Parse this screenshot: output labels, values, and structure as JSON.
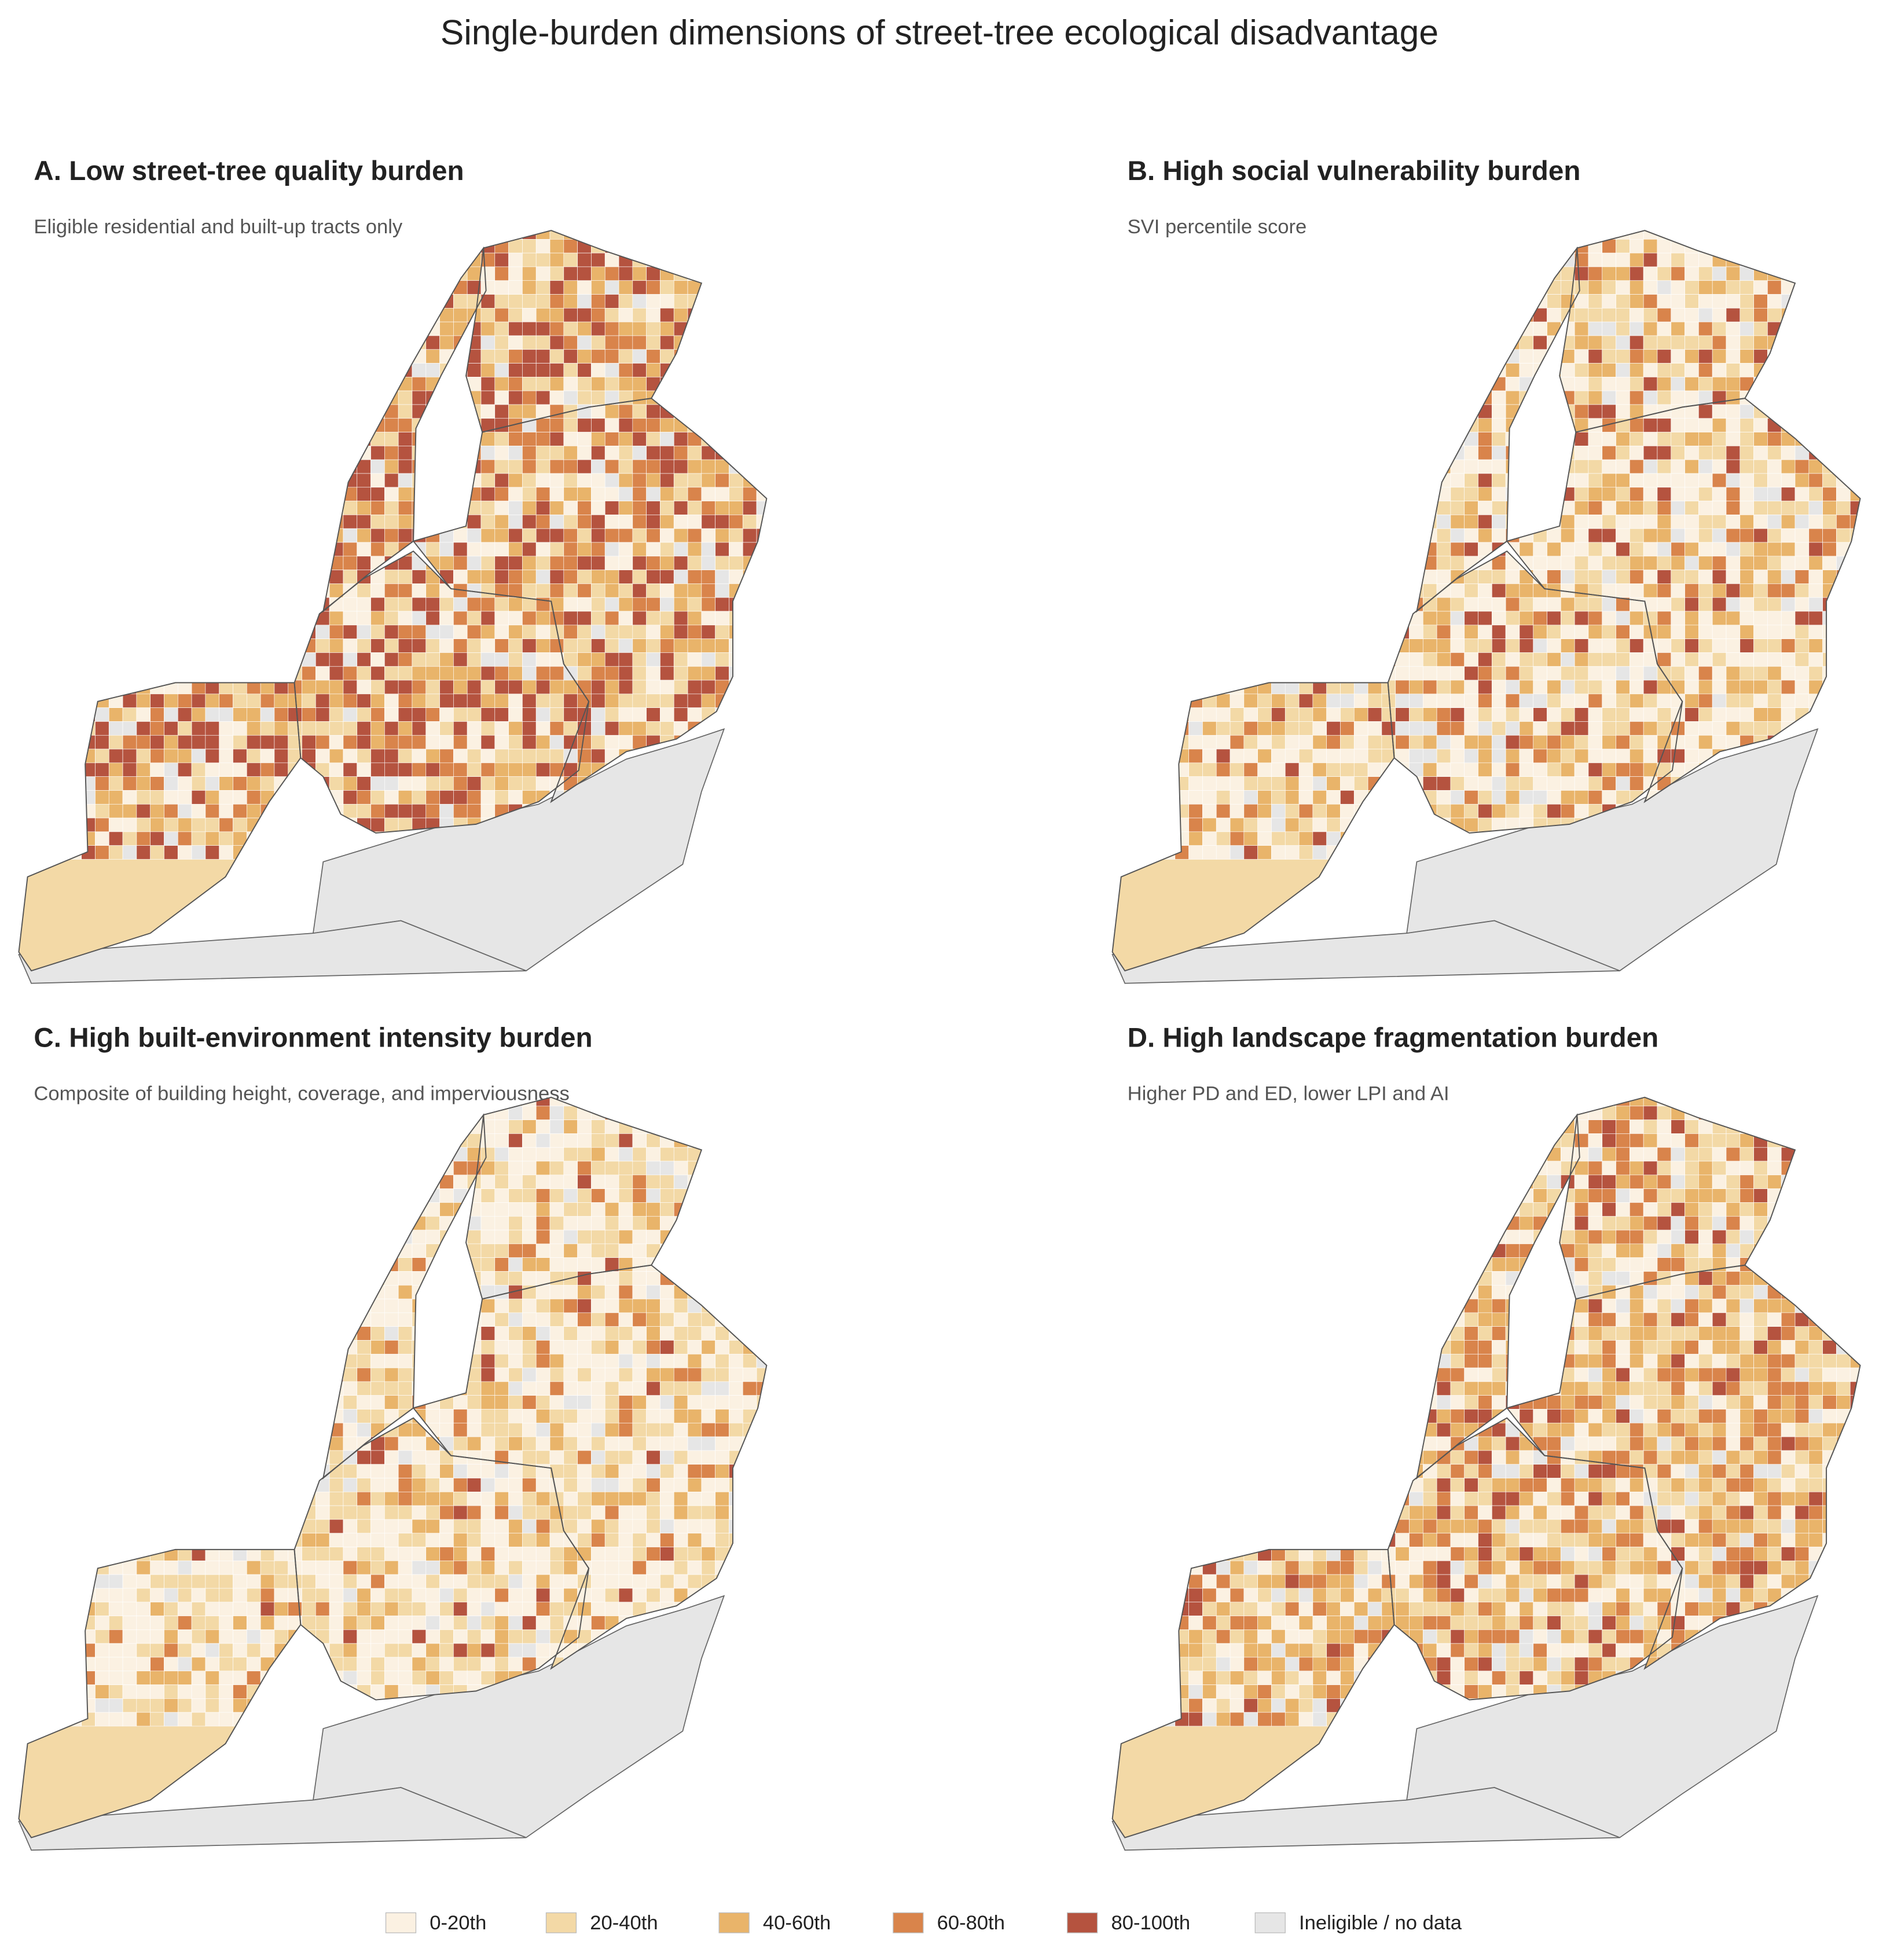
{
  "title": "Single-burden dimensions of street-tree ecological disadvantage",
  "panels": [
    {
      "title": "A. Low street-tree quality burden",
      "subtitle": "Eligible residential and built-up tracts only"
    },
    {
      "title": "B. High social vulnerability burden",
      "subtitle": "SVI percentile score"
    },
    {
      "title": "C. High built-environment intensity burden",
      "subtitle": "Composite of building height, coverage, and imperviousness"
    },
    {
      "title": "D. High landscape fragmentation burden",
      "subtitle": "Higher PD and ED, lower LPI and AI"
    }
  ],
  "legend": [
    {
      "label": "0-20th",
      "color": "#fbf1e2"
    },
    {
      "label": "20-40th",
      "color": "#f3d9a6"
    },
    {
      "label": "40-60th",
      "color": "#e9b46a"
    },
    {
      "label": "60-80th",
      "color": "#d9844b"
    },
    {
      "label": "80-100th",
      "color": "#b5533f"
    },
    {
      "label": "Ineligible / no data",
      "color": "#e6e6e6"
    }
  ]
}
